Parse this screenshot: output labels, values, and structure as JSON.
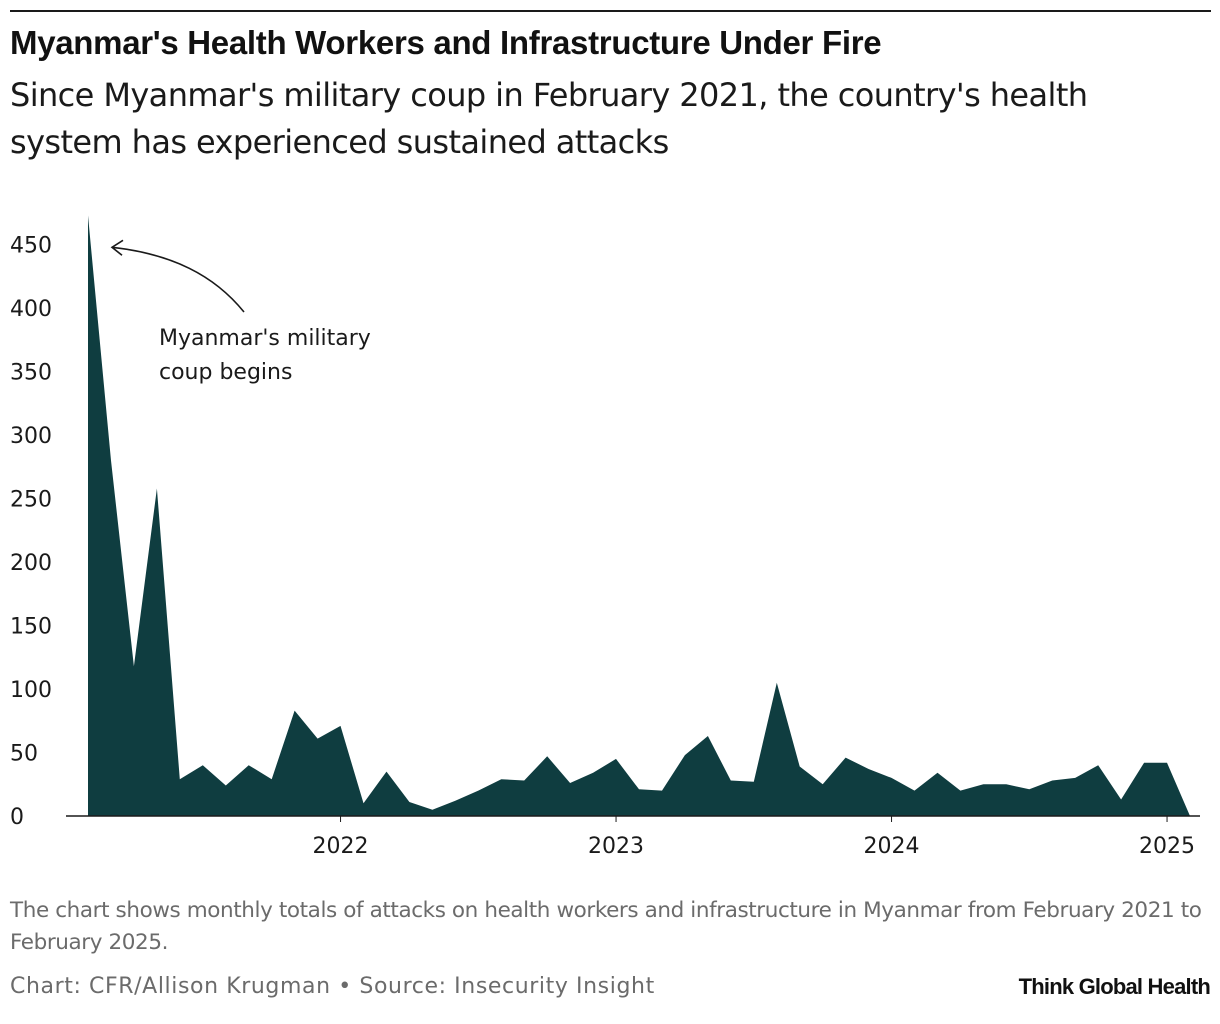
{
  "header": {
    "title": "Myanmar's Health Workers and Infrastructure Under Fire",
    "subtitle": "Since Myanmar's military coup in February 2021, the country's health system has experienced sustained attacks"
  },
  "chart_data": {
    "type": "area",
    "title": "Myanmar's Health Workers and Infrastructure Under Fire",
    "subtitle": "Since Myanmar's military coup in February 2021, the country's health system has experienced sustained attacks",
    "xlabel": "",
    "ylabel": "",
    "ylim": [
      0,
      475
    ],
    "yticks": [
      0,
      50,
      100,
      150,
      200,
      250,
      300,
      350,
      400,
      450
    ],
    "xticks": [
      {
        "label": "2022",
        "date": "2022-01"
      },
      {
        "label": "2023",
        "date": "2023-01"
      },
      {
        "label": "2024",
        "date": "2024-01"
      },
      {
        "label": "2025",
        "date": "2025-01"
      }
    ],
    "grid": false,
    "legend": "none",
    "fill_color": "#0f3d40",
    "x": [
      "2021-02",
      "2021-03",
      "2021-04",
      "2021-05",
      "2021-06",
      "2021-07",
      "2021-08",
      "2021-09",
      "2021-10",
      "2021-11",
      "2021-12",
      "2022-01",
      "2022-02",
      "2022-03",
      "2022-04",
      "2022-05",
      "2022-06",
      "2022-07",
      "2022-08",
      "2022-09",
      "2022-10",
      "2022-11",
      "2022-12",
      "2023-01",
      "2023-02",
      "2023-03",
      "2023-04",
      "2023-05",
      "2023-06",
      "2023-07",
      "2023-08",
      "2023-09",
      "2023-10",
      "2023-11",
      "2023-12",
      "2024-01",
      "2024-02",
      "2024-03",
      "2024-04",
      "2024-05",
      "2024-06",
      "2024-07",
      "2024-08",
      "2024-09",
      "2024-10",
      "2024-11",
      "2024-12",
      "2025-01",
      "2025-02"
    ],
    "values": [
      473,
      280,
      118,
      258,
      29,
      40,
      24,
      40,
      29,
      83,
      61,
      71,
      10,
      35,
      11,
      5,
      12,
      20,
      29,
      28,
      47,
      26,
      34,
      45,
      21,
      20,
      48,
      63,
      28,
      27,
      105,
      39,
      25,
      46,
      37,
      30,
      20,
      34,
      20,
      25,
      25,
      21,
      28,
      30,
      40,
      13,
      42,
      42,
      0
    ],
    "annotations": [
      {
        "text_lines": [
          "Myanmar's military",
          "coup begins"
        ],
        "points_to": "2021-02"
      }
    ]
  },
  "footer": {
    "note": "The chart shows monthly totals of attacks on health workers and infrastructure in Myanmar from February 2021 to February 2025.",
    "credit": "Chart: CFR/Allison Krugman • Source: Insecurity Insight",
    "brand": "Think Global Health"
  }
}
